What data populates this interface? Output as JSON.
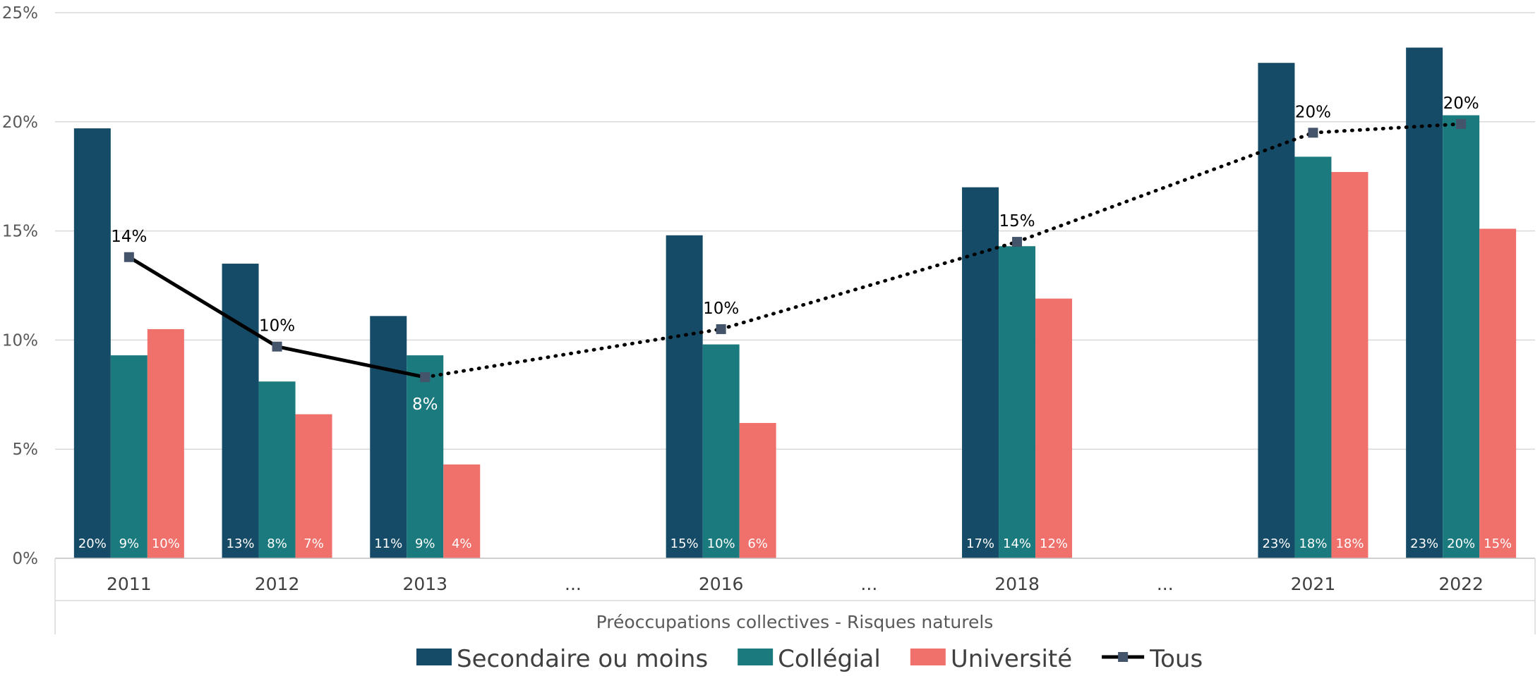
{
  "chart_data": {
    "type": "bar",
    "categories": [
      "2011",
      "2012",
      "2013",
      "...",
      "2016",
      "...",
      "2018",
      "...",
      "2021",
      "2022"
    ],
    "xlabel": "Préoccupations collectives - Risques naturels",
    "ylabel": "",
    "ylim": [
      0,
      25
    ],
    "yticks": [
      "0%",
      "5%",
      "10%",
      "15%",
      "20%",
      "25%"
    ],
    "grid": true,
    "legend_position": "bottom",
    "series": [
      {
        "name": "Secondaire ou moins",
        "color": "#154b66",
        "values": [
          19.7,
          13.5,
          11.1,
          null,
          14.8,
          null,
          17.0,
          null,
          22.7,
          23.4
        ],
        "labels": [
          "20%",
          "13%",
          "11%",
          null,
          "15%",
          null,
          "17%",
          null,
          "23%",
          "23%"
        ]
      },
      {
        "name": "Collégial",
        "color": "#1b7a7e",
        "values": [
          9.3,
          8.1,
          9.3,
          null,
          9.8,
          null,
          14.3,
          null,
          18.4,
          20.3
        ],
        "labels": [
          "9%",
          "8%",
          "9%",
          null,
          "10%",
          null,
          "14%",
          null,
          "18%",
          "20%"
        ]
      },
      {
        "name": "Université",
        "color": "#f0706b",
        "values": [
          10.5,
          6.6,
          4.3,
          null,
          6.2,
          null,
          11.9,
          null,
          17.7,
          15.1
        ],
        "labels": [
          "10%",
          "7%",
          "4%",
          null,
          "6%",
          null,
          "12%",
          null,
          "18%",
          "15%"
        ]
      }
    ],
    "line_series": {
      "name": "Tous",
      "type": "line",
      "color": "#000000",
      "marker_color": "#44546a",
      "values": [
        13.8,
        9.7,
        8.3,
        null,
        10.5,
        null,
        14.5,
        null,
        19.5,
        19.9
      ],
      "labels": [
        "14%",
        "10%",
        "8%",
        null,
        "10%",
        null,
        "15%",
        null,
        "20%",
        "20%"
      ],
      "segment_styles": [
        "solid",
        "solid",
        "dotted",
        "dotted",
        "dotted",
        "dotted"
      ]
    }
  }
}
